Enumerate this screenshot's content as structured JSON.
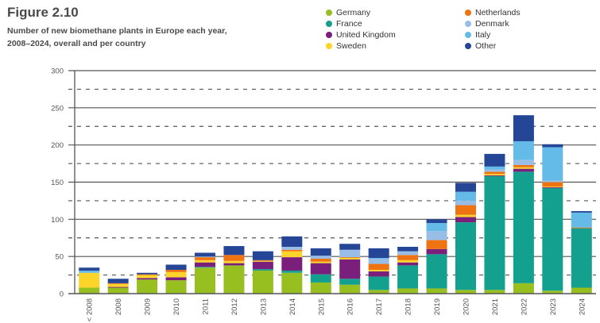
{
  "figure": {
    "title": "Figure 2.10",
    "subtitle_line1": "Number of new biomethane plants in Europe each year,",
    "subtitle_line2": "2008–2024, overall and per country"
  },
  "chart_data": {
    "type": "bar",
    "stacked": true,
    "title": "Figure 2.10",
    "subtitle": "Number of new biomethane plants in Europe each year, 2008–2024, overall and per country",
    "xlabel": "",
    "ylabel": "",
    "ylim": [
      0,
      300
    ],
    "yticks": [
      0,
      50,
      100,
      150,
      200,
      250,
      300
    ],
    "grid": "solid at 50s, dashed at 25-midpoints",
    "legend_position": "top-right",
    "categories": [
      "< 2008",
      "2008",
      "2009",
      "2010",
      "2011",
      "2012",
      "2013",
      "2014",
      "2015",
      "2016",
      "2017",
      "2018",
      "2019",
      "2020",
      "2021",
      "2022",
      "2023",
      "2024"
    ],
    "series": [
      {
        "name": "Germany",
        "color": "#97bf1f",
        "values": [
          8,
          8,
          19,
          18,
          35,
          38,
          31,
          28,
          15,
          12,
          5,
          7,
          7,
          5,
          5,
          14,
          4,
          8
        ]
      },
      {
        "name": "France",
        "color": "#14a08e",
        "values": [
          0,
          0,
          0,
          0,
          1,
          0,
          2,
          3,
          11,
          8,
          18,
          31,
          46,
          91,
          153,
          150,
          138,
          80
        ]
      },
      {
        "name": "United Kingdom",
        "color": "#7b1f7c",
        "values": [
          0,
          1,
          2,
          4,
          6,
          3,
          10,
          18,
          15,
          26,
          7,
          4,
          7,
          7,
          1,
          4,
          1,
          0
        ]
      },
      {
        "name": "Sweden",
        "color": "#fdd52a",
        "values": [
          20,
          4,
          4,
          7,
          3,
          3,
          1,
          8,
          2,
          2,
          2,
          3,
          0,
          3,
          2,
          2,
          1,
          0
        ]
      },
      {
        "name": "Netherlands",
        "color": "#ef7310",
        "values": [
          0,
          1,
          1,
          3,
          4,
          8,
          1,
          2,
          4,
          1,
          8,
          7,
          12,
          13,
          3,
          3,
          6,
          1
        ]
      },
      {
        "name": "Denmark",
        "color": "#98bde6",
        "values": [
          0,
          0,
          0,
          0,
          1,
          0,
          0,
          4,
          4,
          10,
          7,
          5,
          12,
          6,
          3,
          7,
          2,
          0
        ]
      },
      {
        "name": "Italy",
        "color": "#65bbe7",
        "values": [
          3,
          0,
          0,
          0,
          0,
          0,
          0,
          0,
          0,
          0,
          1,
          0,
          11,
          12,
          4,
          25,
          45,
          20
        ]
      },
      {
        "name": "Other",
        "color": "#254697",
        "values": [
          4,
          6,
          2,
          7,
          5,
          12,
          12,
          14,
          10,
          8,
          13,
          6,
          5,
          12,
          17,
          35,
          4,
          2
        ]
      }
    ]
  },
  "legend": [
    {
      "label": "Germany",
      "color": "#97bf1f"
    },
    {
      "label": "France",
      "color": "#14a08e"
    },
    {
      "label": "United Kingdom",
      "color": "#7b1f7c"
    },
    {
      "label": "Sweden",
      "color": "#fdd52a"
    },
    {
      "label": "Netherlands",
      "color": "#ef7310"
    },
    {
      "label": "Denmark",
      "color": "#98bde6"
    },
    {
      "label": "Italy",
      "color": "#65bbe7"
    },
    {
      "label": "Other",
      "color": "#254697"
    }
  ]
}
